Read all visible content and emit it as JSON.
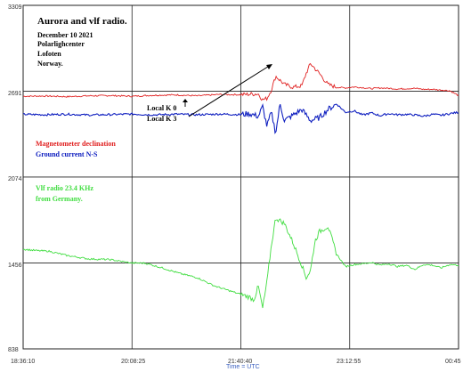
{
  "chart_data": {
    "type": "line",
    "title_lines": [
      "Aurora and vlf radio.",
      "December 10 2021",
      "Polarlighcenter",
      "Lofoten",
      "Norway."
    ],
    "xlabel": "Time = UTC",
    "x_ticks": [
      "18:36:10",
      "20:08:25",
      "21:40:40",
      "23:12:55",
      "00:45"
    ],
    "y_ticks": [
      "3309",
      "2691",
      "2074",
      "1456",
      "838"
    ],
    "grid": true,
    "annotations": [
      "Local K 0",
      "Local K 3"
    ],
    "colors": {
      "magnetometer": "#e02020",
      "ground": "#1020c0",
      "vlf": "#40dd40",
      "arrow": "#000000",
      "grid": "#222222"
    },
    "series": [
      {
        "name": "Magnetometer declination",
        "color": "#e02020",
        "time_fraction": [
          0,
          0.05,
          0.1,
          0.15,
          0.2,
          0.25,
          0.3,
          0.35,
          0.4,
          0.45,
          0.5,
          0.52,
          0.54,
          0.55,
          0.56,
          0.57,
          0.58,
          0.6,
          0.62,
          0.64,
          0.65,
          0.66,
          0.68,
          0.7,
          0.72,
          0.74,
          0.76,
          0.78,
          0.8,
          0.82,
          0.84,
          0.86,
          0.88,
          0.9,
          0.92,
          0.94,
          0.96,
          0.98,
          1.0
        ],
        "values": [
          2655,
          2657,
          2652,
          2658,
          2660,
          2655,
          2662,
          2665,
          2658,
          2668,
          2666,
          2670,
          2672,
          2630,
          2640,
          2700,
          2800,
          2740,
          2720,
          2730,
          2820,
          2890,
          2820,
          2740,
          2720,
          2715,
          2722,
          2717,
          2710,
          2715,
          2712,
          2707,
          2710,
          2712,
          2705,
          2705,
          2700,
          2695,
          2660
        ]
      },
      {
        "name": "Ground current N-S",
        "color": "#1020c0",
        "time_fraction": [
          0,
          0.05,
          0.1,
          0.15,
          0.2,
          0.25,
          0.3,
          0.35,
          0.4,
          0.45,
          0.5,
          0.52,
          0.54,
          0.55,
          0.56,
          0.57,
          0.58,
          0.59,
          0.6,
          0.62,
          0.64,
          0.66,
          0.68,
          0.7,
          0.72,
          0.74,
          0.76,
          0.78,
          0.8,
          0.82,
          0.84,
          0.86,
          0.88,
          0.9,
          0.92,
          0.94,
          0.96,
          0.98,
          1.0
        ],
        "values": [
          2525,
          2522,
          2526,
          2520,
          2523,
          2527,
          2521,
          2526,
          2522,
          2527,
          2523,
          2530,
          2510,
          2580,
          2440,
          2540,
          2390,
          2600,
          2480,
          2520,
          2560,
          2480,
          2500,
          2560,
          2600,
          2540,
          2550,
          2520,
          2535,
          2515,
          2530,
          2522,
          2525,
          2520,
          2512,
          2525,
          2518,
          2530,
          2540
        ]
      },
      {
        "name": "Vlf radio 23.4 KHz from Germany.",
        "color": "#40dd40",
        "time_fraction": [
          0,
          0.03,
          0.06,
          0.1,
          0.15,
          0.2,
          0.25,
          0.28,
          0.32,
          0.36,
          0.4,
          0.44,
          0.48,
          0.5,
          0.52,
          0.53,
          0.54,
          0.55,
          0.56,
          0.57,
          0.58,
          0.6,
          0.62,
          0.64,
          0.65,
          0.66,
          0.67,
          0.68,
          0.7,
          0.72,
          0.74,
          0.76,
          0.78,
          0.8,
          0.82,
          0.84,
          0.86,
          0.88,
          0.9,
          0.92,
          0.94,
          0.96,
          0.98,
          1.0
        ],
        "values": [
          1555,
          1545,
          1540,
          1510,
          1485,
          1480,
          1455,
          1455,
          1420,
          1380,
          1350,
          1290,
          1250,
          1230,
          1210,
          1190,
          1290,
          1130,
          1320,
          1580,
          1780,
          1740,
          1600,
          1440,
          1350,
          1400,
          1610,
          1680,
          1720,
          1520,
          1430,
          1445,
          1450,
          1460,
          1440,
          1450,
          1430,
          1440,
          1410,
          1445,
          1440,
          1420,
          1445,
          1440
        ]
      }
    ]
  }
}
